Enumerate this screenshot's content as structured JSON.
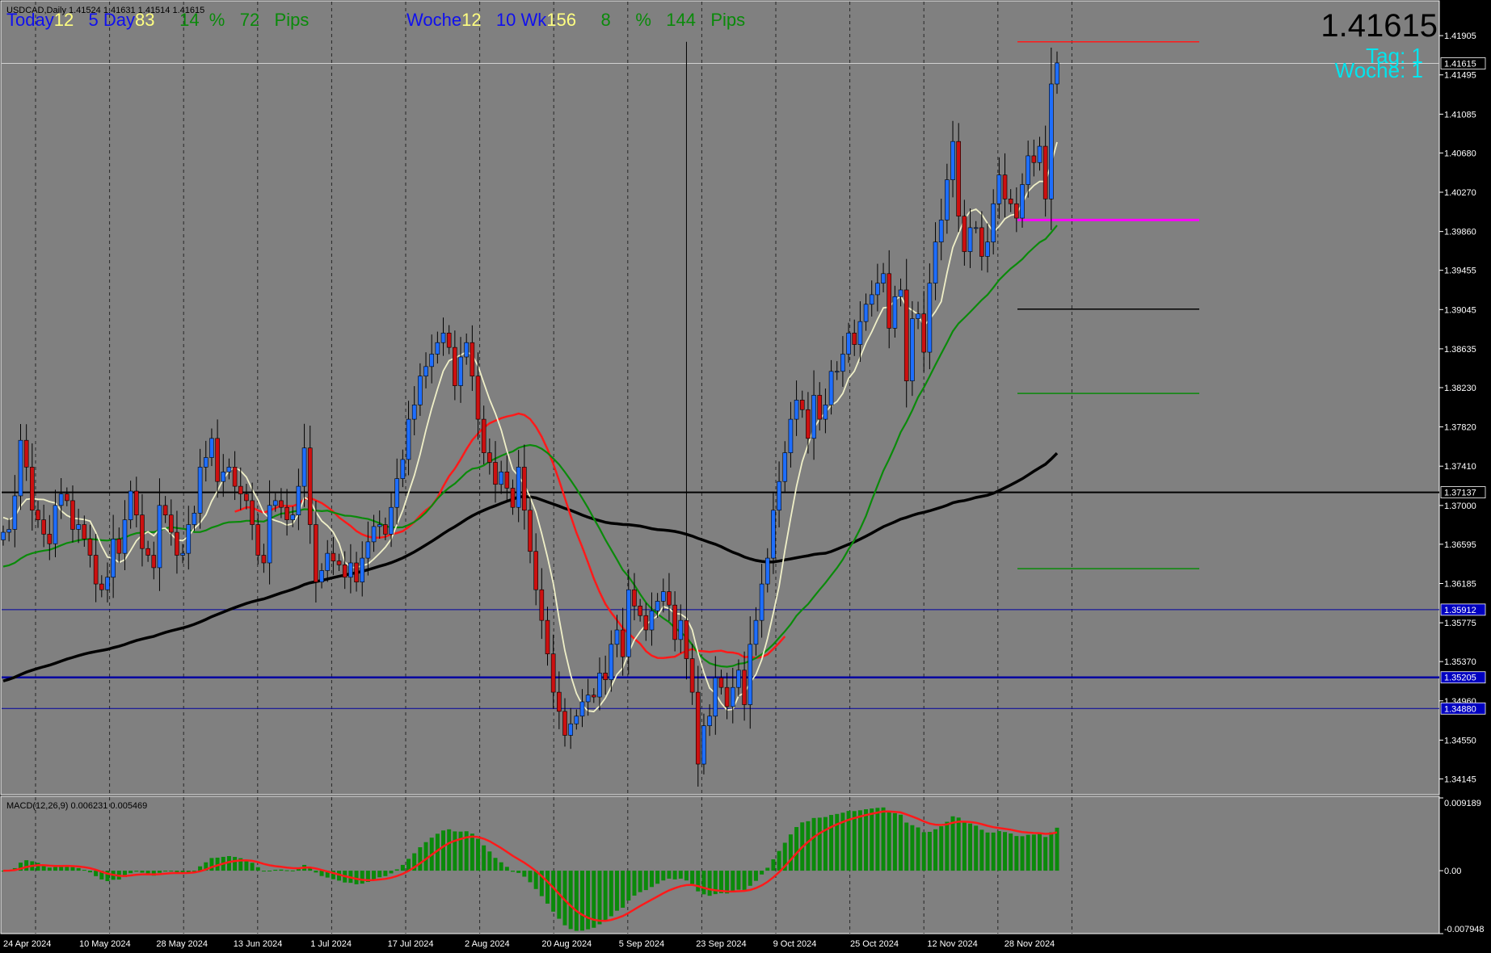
{
  "header": {
    "symbol_line": "USDCAD,Daily  1.41524 1.41631 1.41514 1.41615",
    "macd_label": "MACD(12,26,9) 0.006231 0.005469"
  },
  "hud": {
    "today_label": "Today",
    "today_val": "12",
    "five_day_label": "5 Day",
    "five_day_val": "83",
    "pct_val": "14",
    "pct_sign": "%",
    "pips1_val": "72",
    "pips_label": "Pips",
    "woche_label": "Woche",
    "woche_val": "12",
    "wk10_label": "10 Wk",
    "wk10_val": "156",
    "pct2_val": "8",
    "pips2_val": "144",
    "big_price": "1.41615",
    "tag_line": "Tag:  1",
    "woche_line": "Woche:  1"
  },
  "colors": {
    "background": "#808080",
    "bull": "#1e6eff",
    "bear": "#cc1010",
    "ma_fast": "#f0f0c8",
    "ma_mid": "#0a8a0a",
    "ma_red": "#ff1a1a",
    "ma_slow": "#000000",
    "magenta": "#ff00ff",
    "navy": "#0000a0"
  },
  "chart_data": [
    {
      "type": "candlestick",
      "title": "USDCAD,Daily",
      "y_ticks": [
        "1.41905",
        "1.41495",
        "1.41085",
        "1.40680",
        "1.40270",
        "1.39860",
        "1.39455",
        "1.39045",
        "1.38635",
        "1.38230",
        "1.37820",
        "1.37410",
        "1.37000",
        "1.36595",
        "1.36185",
        "1.35775",
        "1.35370",
        "1.34960",
        "1.34550",
        "1.34145"
      ],
      "y_range": [
        1.3398,
        1.4226
      ],
      "x_labels": [
        "24 Apr 2024",
        "10 May 2024",
        "28 May 2024",
        "13 Jun 2024",
        "1 Jul 2024",
        "17 Jul 2024",
        "2 Aug 2024",
        "20 Aug 2024",
        "5 Sep 2024",
        "23 Sep 2024",
        "9 Oct 2024",
        "25 Oct 2024",
        "12 Nov 2024",
        "28 Nov 2024"
      ],
      "price_tags": [
        {
          "label": "1.41615",
          "value": 1.41615,
          "bg": "#000000"
        },
        {
          "label": "1.37137",
          "value": 1.37137,
          "bg": "#000000"
        },
        {
          "label": "1.35912",
          "value": 1.35912,
          "bg": "#0000c0"
        },
        {
          "label": "1.35205",
          "value": 1.35205,
          "bg": "#0000c0"
        },
        {
          "label": "1.34880",
          "value": 1.3488,
          "bg": "#0000c0"
        }
      ],
      "horizontal_lines": [
        {
          "value": 1.41615,
          "color": "#d0d0d0",
          "width": 1,
          "full": true
        },
        {
          "value": 1.37137,
          "color": "#000000",
          "width": 2,
          "full": true
        },
        {
          "value": 1.35912,
          "color": "#0000a0",
          "width": 1,
          "full": true
        },
        {
          "value": 1.35205,
          "color": "#0000a0",
          "width": 2.5,
          "full": true
        },
        {
          "value": 1.3488,
          "color": "#0000a0",
          "width": 1,
          "full": true
        },
        {
          "value": 1.4184,
          "color": "#ff1a1a",
          "width": 1.5,
          "full": false
        },
        {
          "value": 1.3998,
          "color": "#ff00ff",
          "width": 3,
          "full": false
        },
        {
          "value": 1.3905,
          "color": "#000000",
          "width": 1.5,
          "full": false
        },
        {
          "value": 1.3817,
          "color": "#0a8a0a",
          "width": 1.5,
          "full": false
        },
        {
          "value": 1.3634,
          "color": "#0a8a0a",
          "width": 1.5,
          "full": false
        }
      ],
      "series": [
        {
          "name": "USDCAD",
          "close": [
            1.3672,
            1.3675,
            1.371,
            1.3768,
            1.374,
            1.3695,
            1.3685,
            1.367,
            1.366,
            1.37,
            1.3712,
            1.3705,
            1.3675,
            1.368,
            1.3665,
            1.3648,
            1.3618,
            1.3612,
            1.3625,
            1.3665,
            1.365,
            1.3685,
            1.3715,
            1.369,
            1.3655,
            1.3648,
            1.3635,
            1.37,
            1.369,
            1.3672,
            1.3648,
            1.365,
            1.368,
            1.3692,
            1.374,
            1.375,
            1.377,
            1.3725,
            1.3735,
            1.374,
            1.372,
            1.3712,
            1.3705,
            1.368,
            1.3648,
            1.364,
            1.37,
            1.3705,
            1.3698,
            1.3685,
            1.369,
            1.372,
            1.376,
            1.368,
            1.362,
            1.3632,
            1.365,
            1.3642,
            1.3638,
            1.3625,
            1.364,
            1.362,
            1.3645,
            1.3662,
            1.3678,
            1.368,
            1.367,
            1.3698,
            1.3728,
            1.3748,
            1.379,
            1.3805,
            1.3835,
            1.3845,
            1.3858,
            1.387,
            1.388,
            1.3865,
            1.3825,
            1.3855,
            1.387,
            1.3835,
            1.379,
            1.3755,
            1.3745,
            1.3722,
            1.3735,
            1.3718,
            1.3698,
            1.374,
            1.3695,
            1.3652,
            1.3612,
            1.358,
            1.3545,
            1.3505,
            1.3485,
            1.346,
            1.3472,
            1.348,
            1.3495,
            1.3502,
            1.35,
            1.3525,
            1.3518,
            1.3555,
            1.357,
            1.3542,
            1.3612,
            1.3595,
            1.3585,
            1.357,
            1.359,
            1.36,
            1.361,
            1.3596,
            1.356,
            1.358,
            1.354,
            1.3505,
            1.343,
            1.347,
            1.348,
            1.352,
            1.351,
            1.349,
            1.351,
            1.3528,
            1.3492,
            1.3555,
            1.358,
            1.3618,
            1.3645,
            1.3695,
            1.3725,
            1.3755,
            1.379,
            1.381,
            1.38,
            1.377,
            1.3815,
            1.379,
            1.3805,
            1.384,
            1.384,
            1.3858,
            1.388,
            1.3868,
            1.3892,
            1.391,
            1.392,
            1.3932,
            1.3942,
            1.3885,
            1.3918,
            1.3925,
            1.383,
            1.3895,
            1.39,
            1.386,
            1.3932,
            1.3975,
            1.3998,
            1.404,
            1.408,
            1.4002,
            1.3965,
            1.399,
            1.399,
            1.396,
            1.3975,
            1.4015,
            1.4045,
            1.402,
            1.4015,
            1.4,
            1.4035,
            1.4065,
            1.4058,
            1.4075,
            1.402,
            1.414,
            1.4162
          ]
        },
        {
          "name": "MA fast",
          "color": "#f0f0c8"
        },
        {
          "name": "MA mid",
          "color": "#0a8a0a"
        },
        {
          "name": "MA red",
          "color": "#ff1a1a"
        },
        {
          "name": "MA slow",
          "color": "#000000"
        }
      ]
    },
    {
      "type": "bar",
      "title": "MACD(12,26,9) 0.006231 0.005469",
      "y_ticks": [
        "0.009189",
        "0.00",
        "-0.007948"
      ],
      "y_range": [
        -0.007948,
        0.009189
      ],
      "series": [
        {
          "name": "MACD",
          "color": "#0a8a0a"
        },
        {
          "name": "Signal",
          "color": "#ff1a1a"
        }
      ]
    }
  ]
}
